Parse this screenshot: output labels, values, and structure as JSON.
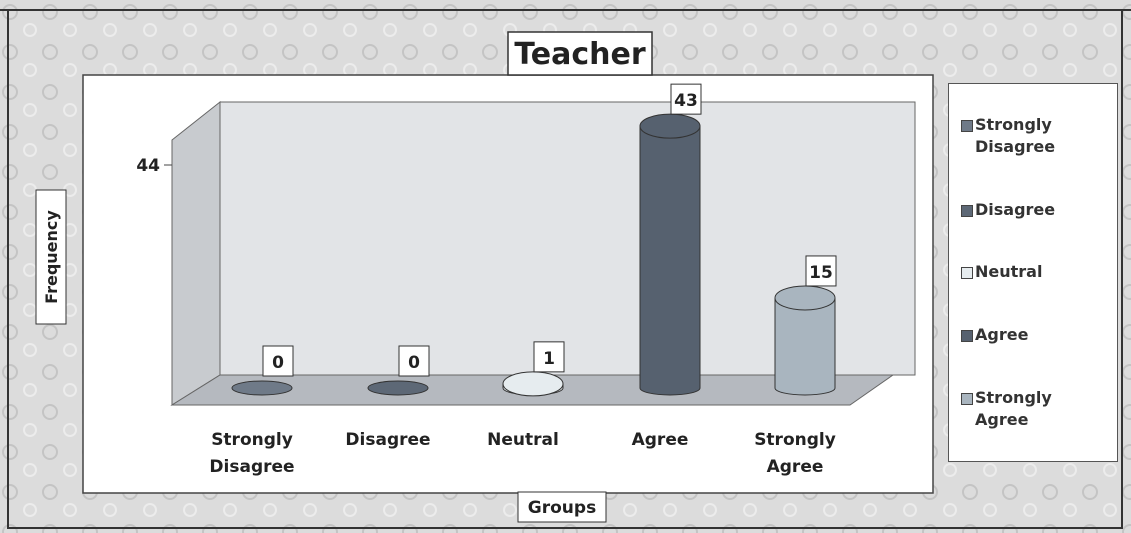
{
  "chart_data": {
    "type": "bar",
    "title": "Teacher",
    "x_label": "Groups",
    "y_label": "Frequency",
    "categories": [
      "Strongly Disagree",
      "Disagree",
      "Neutral",
      "Agree",
      "Strongly Agree"
    ],
    "values": [
      0,
      0,
      1,
      43,
      15
    ],
    "colors": [
      "#6f7a88",
      "#5d6876",
      "#e6ecef",
      "#56616f",
      "#a9b5bf"
    ],
    "ylim": [
      0,
      44
    ],
    "yticks": [
      44
    ],
    "legend": "right"
  }
}
